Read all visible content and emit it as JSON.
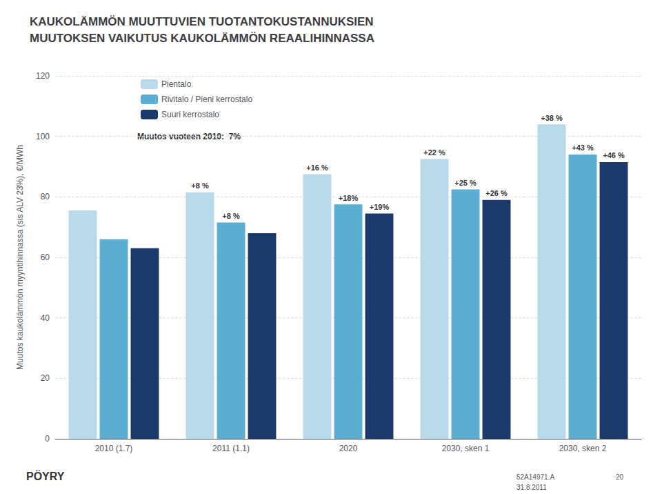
{
  "chart_data": {
    "type": "bar",
    "title": "KAUKOLÄMMÖN MUUTTUVIEN TUOTANTOKUSTANNUKSIEN\nMUUTOKSEN VAIKUTUS KAUKOLÄMMÖN REAALIHINNASSA",
    "categories": [
      "2010 (1.7)",
      "2011 (1.1)",
      "2020",
      "2030, sken 1",
      "2030, sken 2"
    ],
    "series": [
      {
        "name": "Pientalo",
        "color": "#b8daea",
        "values": [
          75.5,
          81.5,
          87.5,
          92.5,
          104.0
        ],
        "annotations": [
          null,
          "+8 %",
          "+16 %",
          "+22 %",
          "+38 %"
        ]
      },
      {
        "name": "Rivitalo / Pieni kerrostalo",
        "color": "#5baed1",
        "values": [
          66.0,
          71.5,
          77.5,
          82.5,
          94.0
        ],
        "annotations": [
          null,
          "+8 %",
          "+18%",
          "+25 %",
          "+43 %"
        ]
      },
      {
        "name": "Suuri kerrostalo",
        "color": "#1b3a6b",
        "values": [
          63.0,
          68.0,
          74.5,
          79.0,
          91.5
        ],
        "annotations": [
          null,
          null,
          "+19%",
          "+26 %",
          "+46 %"
        ]
      }
    ],
    "ylabel": "Muutos kaukolämmön myyntihinnassa (sis ALV 23%), €/MWh",
    "ylim": [
      0,
      120
    ],
    "yticks": [
      0,
      20,
      40,
      60,
      80,
      100,
      120
    ],
    "grid": true,
    "legend": "upper left",
    "annotations": [
      "Muutos vuoteen 2010:  7%"
    ],
    "footer": [
      "52A14971.A",
      "20",
      "31.8.2011"
    ],
    "logo": "PÖYRY"
  }
}
